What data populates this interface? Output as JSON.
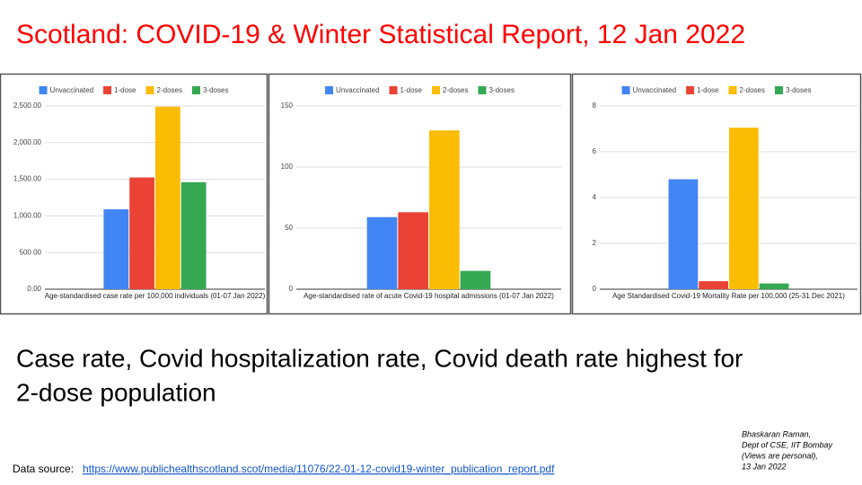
{
  "title": "Scotland: COVID-19 & Winter Statistical Report, 12 Jan 2022",
  "caption": [
    "Case rate, Covid hospitalization rate, Covid death rate highest for",
    "2-dose population"
  ],
  "author_note": [
    "Bhaskaran Raman,",
    "Dept of CSE, IIT Bombay",
    "(Views are personal),",
    "13 Jan 2022"
  ],
  "source_label": "Data source:",
  "source_url": "https://www.publichealthscotland.scot/media/11076/22-01-12-covid19-winter_publication_report.pdf",
  "chart_data": [
    {
      "type": "bar",
      "x_label": "Age-standardised case rate per 100,000 individuals (01-07 Jan 2022)",
      "categories": [
        null
      ],
      "series": [
        {
          "name": "Unvaccinated",
          "color": "#4285f4",
          "values": [
            1090
          ]
        },
        {
          "name": "1-dose",
          "color": "#ea4335",
          "values": [
            1525
          ]
        },
        {
          "name": "2-doses",
          "color": "#fbbc04",
          "values": [
            2490
          ]
        },
        {
          "name": "3-doses",
          "color": "#34a853",
          "values": [
            1460
          ]
        }
      ],
      "ylim": [
        0,
        2500
      ],
      "yticks": [
        {
          "value": 0,
          "label": "0.00"
        },
        {
          "value": 500,
          "label": "500.00"
        },
        {
          "value": 1000,
          "label": "1,000.00"
        },
        {
          "value": 1500,
          "label": "1,500.00"
        },
        {
          "value": 2000,
          "label": "2,000.00"
        },
        {
          "value": 2500,
          "label": "2,500.00"
        }
      ],
      "grid": true,
      "legend": "top"
    },
    {
      "type": "bar",
      "x_label": "Age-standardised rate of acute Covid-19 hospital admissions (01-07 Jan 2022)",
      "categories": [
        null
      ],
      "series": [
        {
          "name": "Unvaccinated",
          "color": "#4285f4",
          "values": [
            59
          ]
        },
        {
          "name": "1-dose",
          "color": "#ea4335",
          "values": [
            63
          ]
        },
        {
          "name": "2-doses",
          "color": "#fbbc04",
          "values": [
            130
          ]
        },
        {
          "name": "3-doses",
          "color": "#34a853",
          "values": [
            15
          ]
        }
      ],
      "ylim": [
        0,
        150
      ],
      "yticks": [
        0,
        50,
        100,
        150
      ],
      "grid": true,
      "legend": "top"
    },
    {
      "type": "bar",
      "x_label": "Age Standardised Covid-19 Mortality Rate per 100,000 (25-31 Dec 2021)",
      "categories": [
        null
      ],
      "series": [
        {
          "name": "Unvaccinated",
          "color": "#4285f4",
          "values": [
            4.8
          ]
        },
        {
          "name": "1-dose",
          "color": "#ea4335",
          "values": [
            0.35
          ]
        },
        {
          "name": "2-doses",
          "color": "#fbbc04",
          "values": [
            7.05
          ]
        },
        {
          "name": "3-doses",
          "color": "#34a853",
          "values": [
            0.25
          ]
        }
      ],
      "ylim": [
        0,
        8
      ],
      "yticks": [
        0,
        2,
        4,
        6,
        8
      ],
      "grid": true,
      "legend": "top"
    }
  ]
}
